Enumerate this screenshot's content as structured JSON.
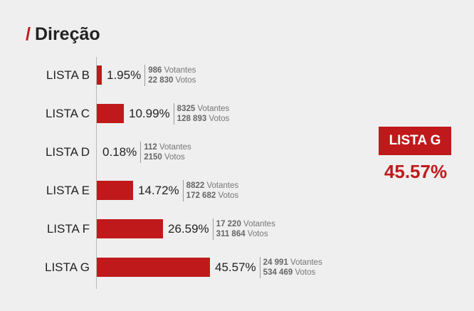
{
  "header": {
    "slash": "/",
    "title": "Direção"
  },
  "winner": {
    "label": "LISTA G",
    "pct": "45.57%",
    "color": "#c0191b"
  },
  "chart_data": {
    "type": "bar",
    "orientation": "horizontal",
    "title": "Direção",
    "categories": [
      "LISTA B",
      "LISTA C",
      "LISTA D",
      "LISTA E",
      "LISTA F",
      "LISTA G"
    ],
    "values": [
      1.95,
      10.99,
      0.18,
      14.72,
      26.59,
      45.57
    ],
    "labels": [
      "1.95%",
      "10.99%",
      "0.18%",
      "14.72%",
      "26.59%",
      "45.57%"
    ],
    "voters": [
      "986",
      "8325",
      "112",
      "8822",
      "17 220",
      "24 991"
    ],
    "votes": [
      "22 830",
      "128 893",
      "2150",
      "172 682",
      "311 864",
      "534 469"
    ],
    "voters_unit": "Votantes",
    "votes_unit": "Votos",
    "bar_color": "#c0191b",
    "xlim": [
      0,
      45.57
    ]
  }
}
